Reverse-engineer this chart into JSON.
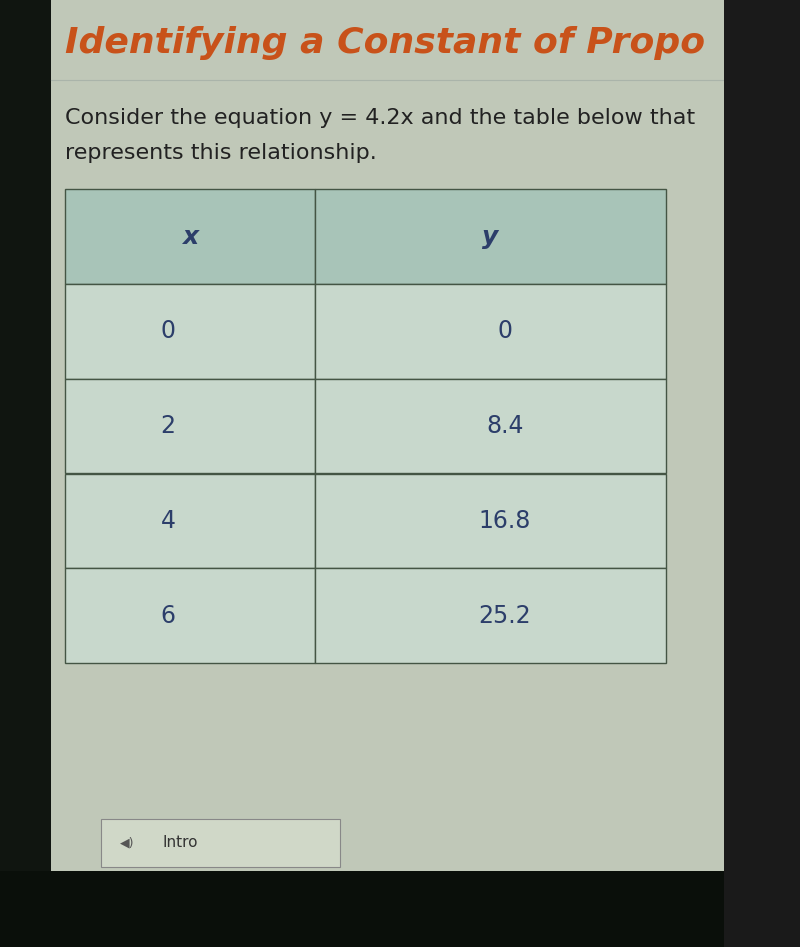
{
  "title": "Identifying a Constant of Propo",
  "title_color": "#c8521a",
  "title_fontsize": 26,
  "body_text_color": "#222222",
  "body_fontsize": 16,
  "table_headers": [
    "x",
    "y"
  ],
  "table_x_values": [
    "0",
    "2",
    "4",
    "6"
  ],
  "table_y_values": [
    "0",
    "8.4",
    "16.8",
    "25.2"
  ],
  "table_header_bg": "#a8c4b8",
  "table_row_bg": "#c8d8cc",
  "table_border_color": "#445544",
  "table_text_color": "#2c3e6a",
  "header_fontsize": 18,
  "cell_fontsize": 17,
  "screen_bg": "#c0c8b8",
  "outer_bg": "#1a1a1a",
  "left_shadow": "#111111",
  "bottom_shadow": "#0a0a0a",
  "intro_text": "Intro",
  "intro_btn_bg": "#d0d8c8",
  "intro_btn_border": "#888888",
  "intro_text_color": "#333333"
}
